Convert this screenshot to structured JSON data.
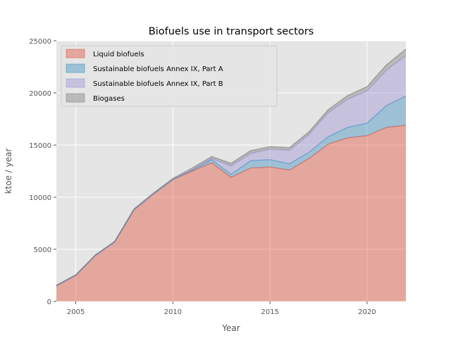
{
  "chart_data": {
    "type": "area",
    "title": "Biofuels use in transport sectors",
    "xlabel": "Year",
    "ylabel": "ktoe / year",
    "x": [
      2004,
      2005,
      2006,
      2007,
      2008,
      2009,
      2010,
      2011,
      2012,
      2013,
      2014,
      2015,
      2016,
      2017,
      2018,
      2019,
      2020,
      2021,
      2022
    ],
    "xlim": [
      2004,
      2022
    ],
    "ylim": [
      0,
      25000
    ],
    "xticks": [
      2005,
      2010,
      2015,
      2020
    ],
    "yticks": [
      0,
      5000,
      10000,
      15000,
      20000,
      25000
    ],
    "grid": true,
    "stacked": true,
    "legend_position": "top-left",
    "series": [
      {
        "name": "Liquid biofuels",
        "color": "#e24a33",
        "values": [
          1500,
          2500,
          4400,
          5700,
          8800,
          10300,
          11700,
          12500,
          13300,
          11900,
          12800,
          12900,
          12600,
          13700,
          15100,
          15700,
          15900,
          16700,
          16900
        ]
      },
      {
        "name": "Sustainable biofuels Annex IX, Part A",
        "color": "#348abd",
        "values": [
          0,
          0,
          0,
          0,
          0,
          0,
          0,
          100,
          300,
          300,
          700,
          700,
          600,
          600,
          700,
          1000,
          1200,
          2100,
          2800
        ]
      },
      {
        "name": "Sustainable biofuels Annex IX, Part B",
        "color": "#988ed5",
        "values": [
          0,
          0,
          0,
          0,
          0,
          0,
          0,
          0,
          100,
          800,
          700,
          1000,
          1300,
          1700,
          2300,
          2700,
          3100,
          3400,
          3900
        ]
      },
      {
        "name": "Biogases",
        "color": "#777777",
        "values": [
          50,
          50,
          50,
          50,
          80,
          100,
          100,
          200,
          200,
          250,
          250,
          250,
          250,
          250,
          300,
          350,
          400,
          500,
          600
        ]
      }
    ]
  }
}
